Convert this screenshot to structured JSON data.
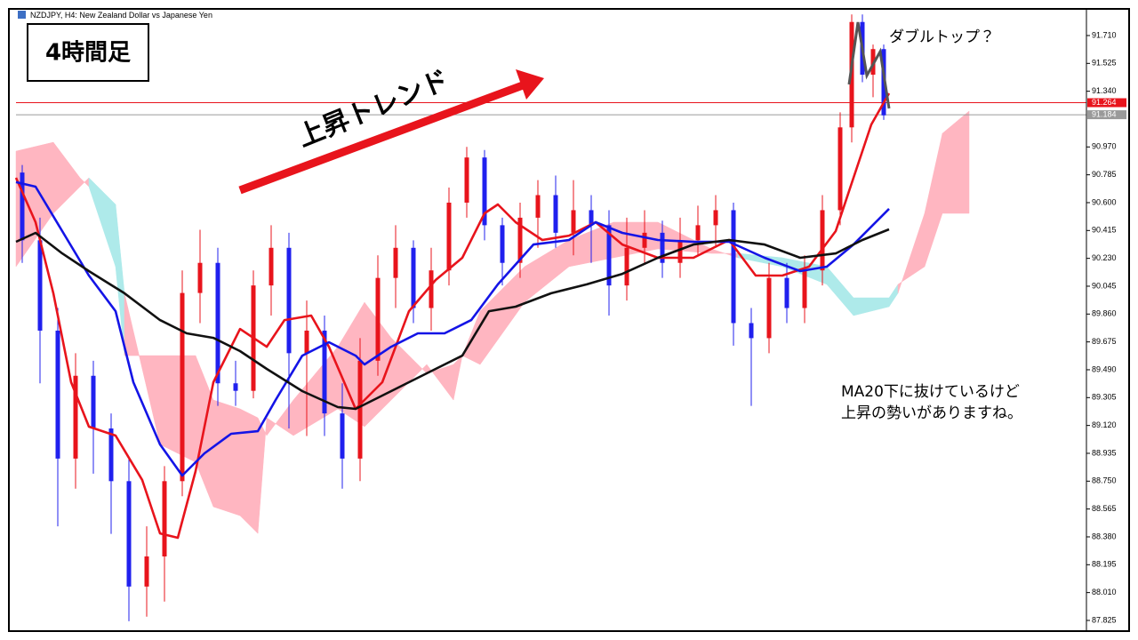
{
  "chart_data": {
    "type": "candlestick",
    "symbol_caption": "NZDJPY, H4:  New Zealand Dollar vs Japanese Yen",
    "timeframe_label": "4時間足",
    "trend_label": "上昇トレンド",
    "annotations": [
      "ダブルトップ？",
      "MA20下に抜けているけど",
      "上昇の勢いがありますね。"
    ],
    "xlim": [
      1.8,
      122.2
    ],
    "ylim": [
      87.754,
      91.887
    ],
    "yticks": [
      {
        "value": 91.71,
        "label": "91.710"
      },
      91.525,
      {
        "value": 91.34,
        "label": "91.340"
      },
      {
        "value": 90.97,
        "label": "90.970"
      },
      90.785,
      {
        "value": 90.6,
        "label": "90.600"
      },
      90.415,
      {
        "value": 90.23,
        "label": "90.230"
      },
      90.045,
      {
        "value": 89.86,
        "label": "89.860"
      },
      89.675,
      {
        "value": 89.49,
        "label": "89.490"
      },
      89.305,
      {
        "value": 89.12,
        "label": "89.120"
      },
      88.935,
      {
        "value": 88.75,
        "label": "88.750"
      },
      88.565,
      {
        "value": 88.38,
        "label": "88.380"
      },
      88.195,
      {
        "value": 88.01,
        "label": "88.010"
      },
      87.825
    ],
    "up_color": "#e8141c",
    "down_color": "#2020ee",
    "candles": {
      "x": [
        2.5,
        4.5,
        6.5,
        8.5,
        10.5,
        12.5,
        14.5,
        16.5,
        18.5,
        20.5,
        22.5,
        24.5,
        26.5,
        28.5,
        30.5,
        32.5,
        34.5,
        36.5,
        38.5,
        40.5,
        42.5,
        44.5,
        46.5,
        48.5,
        50.5,
        52.5,
        54.5,
        56.5,
        58.5,
        60.5,
        62.5,
        64.5,
        66.5,
        68.5,
        70.5,
        72.5,
        74.5,
        76.5,
        78.5,
        80.5,
        82.5,
        84.5,
        86.5,
        88.5,
        90.5,
        92.5,
        94.5,
        95.8,
        97.0,
        98.2,
        99.4
      ],
      "open": [
        90.8,
        90.35,
        89.75,
        88.9,
        89.45,
        89.1,
        88.75,
        88.05,
        88.25,
        88.75,
        90.0,
        90.2,
        89.4,
        89.35,
        90.05,
        90.3,
        89.6,
        89.75,
        89.2,
        88.9,
        89.55,
        90.1,
        90.3,
        89.9,
        90.15,
        90.6,
        90.9,
        90.45,
        90.2,
        90.5,
        90.65,
        90.4,
        90.55,
        90.45,
        90.05,
        90.3,
        90.4,
        90.2,
        90.35,
        90.45,
        90.55,
        89.8,
        89.7,
        90.1,
        89.9,
        90.15,
        90.55,
        91.1,
        91.8,
        91.45,
        91.62
      ],
      "high": [
        90.85,
        90.5,
        89.9,
        89.6,
        89.55,
        89.2,
        88.9,
        88.45,
        88.85,
        90.15,
        90.42,
        90.3,
        89.55,
        90.15,
        90.45,
        90.4,
        89.95,
        89.85,
        89.4,
        89.7,
        90.25,
        90.45,
        90.35,
        90.3,
        90.7,
        90.97,
        90.95,
        90.5,
        90.6,
        90.75,
        90.78,
        90.75,
        90.65,
        90.55,
        90.5,
        90.55,
        90.48,
        90.5,
        90.58,
        90.65,
        90.6,
        89.9,
        90.2,
        90.2,
        90.25,
        90.65,
        91.2,
        91.85,
        91.85,
        91.65,
        91.65
      ],
      "low": [
        90.2,
        89.4,
        88.45,
        88.7,
        88.8,
        88.4,
        87.82,
        87.85,
        87.95,
        88.65,
        89.8,
        89.25,
        89.25,
        89.3,
        89.85,
        89.1,
        89.05,
        89.05,
        88.7,
        88.75,
        89.45,
        89.9,
        89.8,
        89.75,
        90.05,
        90.5,
        90.35,
        90.05,
        90.1,
        90.3,
        90.3,
        90.25,
        90.2,
        89.85,
        89.95,
        90.2,
        90.1,
        90.1,
        90.25,
        90.3,
        89.65,
        89.25,
        89.6,
        89.8,
        89.8,
        90.05,
        90.45,
        91.0,
        91.4,
        91.3,
        91.15
      ],
      "close": [
        90.35,
        89.75,
        88.9,
        89.45,
        89.1,
        88.75,
        88.05,
        88.25,
        88.75,
        90.0,
        90.2,
        89.4,
        89.35,
        90.05,
        90.3,
        89.6,
        89.75,
        89.2,
        88.9,
        89.55,
        90.1,
        90.3,
        89.9,
        90.15,
        90.6,
        90.9,
        90.45,
        90.2,
        90.5,
        90.65,
        90.4,
        90.55,
        90.45,
        90.05,
        90.3,
        90.4,
        90.2,
        90.35,
        90.45,
        90.55,
        89.8,
        89.7,
        90.1,
        89.9,
        90.15,
        90.55,
        91.1,
        91.8,
        91.45,
        91.62,
        91.18
      ]
    },
    "cloud": {
      "above_color": "#ffb6c1",
      "below_color": "#aeeaea",
      "x": [
        1.8,
        6,
        9,
        10,
        13,
        14,
        18,
        22,
        24,
        27,
        29,
        30,
        33,
        38,
        41,
        44,
        47,
        48,
        51,
        52,
        54,
        59,
        64,
        69,
        74,
        80,
        83,
        88,
        93,
        96,
        100,
        101,
        104,
        106,
        109
      ],
      "span_a": [
        90.942,
        91.001,
        90.765,
        90.706,
        90.175,
        89.584,
        89.584,
        89.584,
        89.289,
        89.23,
        89.171,
        89.053,
        89.289,
        89.643,
        89.938,
        89.702,
        89.525,
        89.466,
        89.525,
        89.584,
        89.879,
        90.175,
        90.352,
        90.47,
        90.47,
        90.293,
        90.234,
        90.175,
        90.057,
        89.85,
        89.909,
        89.998,
        90.529,
        91.06,
        91.208
      ],
      "span_b": [
        90.175,
        90.529,
        90.706,
        90.765,
        90.588,
        89.998,
        88.994,
        88.876,
        88.58,
        88.521,
        88.403,
        89.171,
        89.053,
        89.23,
        89.112,
        89.289,
        89.466,
        89.525,
        89.289,
        89.584,
        89.525,
        89.938,
        90.175,
        90.234,
        90.293,
        90.263,
        90.263,
        90.234,
        90.175,
        89.968,
        89.968,
        90.057,
        90.175,
        90.529,
        90.529
      ]
    },
    "series": [
      {
        "color": "#e8141c",
        "x": [
          1.8,
          4,
          6,
          8,
          10,
          13,
          16,
          18,
          20,
          22,
          24,
          27,
          30,
          32,
          35,
          37,
          40,
          43,
          46,
          49,
          52,
          54.5,
          56,
          58,
          61,
          64,
          67,
          70,
          74,
          78,
          82,
          85,
          88,
          91,
          94,
          96,
          98,
          100
        ],
        "values": [
          90.765,
          90.47,
          89.998,
          89.407,
          89.112,
          89.053,
          88.757,
          88.403,
          88.374,
          88.817,
          89.407,
          89.761,
          89.643,
          89.82,
          89.85,
          89.643,
          89.23,
          89.407,
          89.879,
          90.086,
          90.234,
          90.529,
          90.588,
          90.47,
          90.352,
          90.381,
          90.47,
          90.322,
          90.234,
          90.234,
          90.352,
          90.116,
          90.116,
          90.175,
          90.411,
          90.765,
          91.119,
          91.326
        ]
      },
      {
        "color": "#1414e6",
        "x": [
          1.8,
          4,
          7,
          10,
          13,
          15,
          18,
          20.5,
          23,
          26,
          29,
          31,
          34,
          37,
          40,
          41,
          44,
          47,
          50,
          53,
          56,
          60,
          64,
          67,
          70,
          74,
          78,
          82,
          86,
          90,
          93,
          96,
          100
        ],
        "values": [
          90.736,
          90.706,
          90.411,
          90.116,
          89.879,
          89.407,
          88.994,
          88.787,
          88.935,
          89.065,
          89.082,
          89.289,
          89.584,
          89.673,
          89.584,
          89.525,
          89.643,
          89.732,
          89.732,
          89.82,
          90.057,
          90.322,
          90.352,
          90.47,
          90.399,
          90.352,
          90.34,
          90.34,
          90.234,
          90.145,
          90.175,
          90.322,
          90.559
        ]
      },
      {
        "color": "#111111",
        "x": [
          1.8,
          4,
          7,
          10,
          14,
          18,
          21,
          24,
          27,
          30,
          34,
          38,
          40,
          44,
          48,
          52,
          55,
          58,
          62,
          66,
          70,
          74,
          78,
          82,
          86,
          90,
          94,
          97,
          100
        ],
        "values": [
          90.34,
          90.399,
          90.263,
          90.145,
          89.998,
          89.82,
          89.732,
          89.702,
          89.614,
          89.496,
          89.348,
          89.242,
          89.23,
          89.348,
          89.466,
          89.584,
          89.879,
          89.909,
          89.998,
          90.057,
          90.127,
          90.234,
          90.322,
          90.352,
          90.322,
          90.234,
          90.263,
          90.352,
          90.423
        ]
      }
    ],
    "price_lines": [
      {
        "value": 91.264,
        "color": "#e8141c"
      },
      {
        "value": 91.184,
        "color": "#9a9a9a"
      }
    ]
  }
}
